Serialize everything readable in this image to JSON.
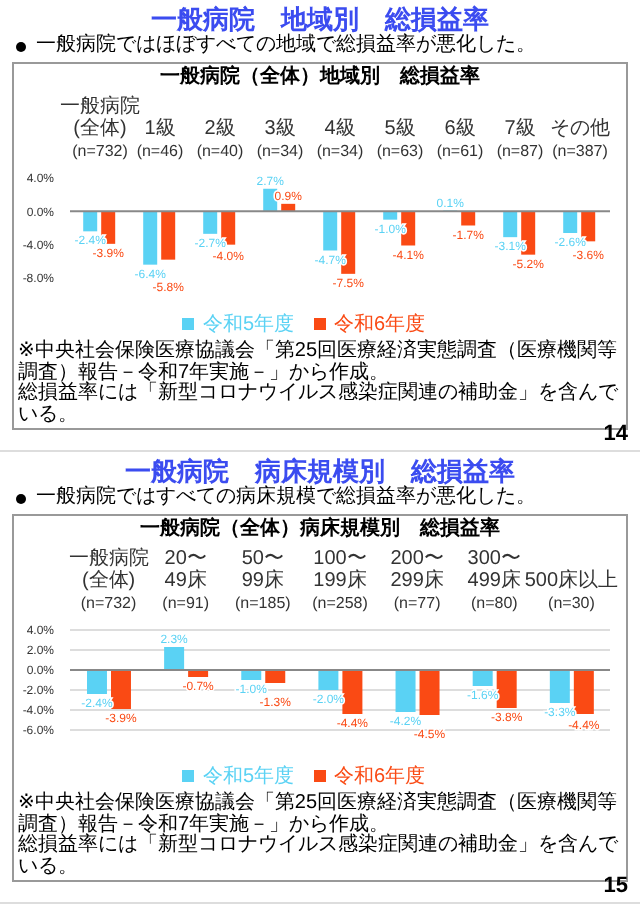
{
  "chart_data": [
    {
      "type": "bar",
      "title": "一般病院　地域別　総損益率",
      "subtitle": "一般病院ではほぼすべての地域で総損益率が悪化した。",
      "annotations": [
        "一般病院（全体）地域別　総損益率",
        "※中央社会保険医療協議会「第25回医療経済実態調査（医療機関等調査）報告－令和7年実施－」から作成。",
        "総損益率には「新型コロナウイルス感染症関連の補助金」を含んでいる。",
        "14"
      ],
      "categories": [
        "一般病院\n(全体)\n(n=732)",
        "1級\n(n=46)",
        "2級\n(n=40)",
        "3級\n(n=34)",
        "4級\n(n=34)",
        "5級\n(n=63)",
        "6級\n(n=61)",
        "7級\n(n=87)",
        "その他\n(n=387)"
      ],
      "series": [
        {
          "name": "令和5年度",
          "color": "#5ad2f4",
          "values": [
            -2.4,
            -6.4,
            -2.7,
            2.7,
            -4.7,
            -1.0,
            0.1,
            -3.1,
            -2.6
          ],
          "value_labels": [
            "-2.4%",
            "-6.4%",
            "-2.7%",
            "2.7%",
            "-4.7%",
            "-1.0%",
            "0.1%",
            "-3.1%",
            "-2.6%"
          ]
        },
        {
          "name": "令和6年度",
          "color": "#fa4a14",
          "values": [
            -3.9,
            -5.8,
            -4.0,
            0.9,
            -7.5,
            -4.1,
            -1.7,
            -5.2,
            -3.6
          ],
          "value_labels": [
            "-3.9%",
            "-5.8%",
            "-4.0%",
            "0.9%",
            "-7.5%",
            "-4.1%",
            "-1.7%",
            "-5.2%",
            "-3.6%"
          ]
        }
      ],
      "ylim": [
        -8,
        4
      ],
      "yticks": [
        {
          "value": 4,
          "label": "4.0%"
        },
        {
          "value": 0,
          "label": "0.0%"
        },
        {
          "value": -4,
          "label": "-4.0%"
        },
        {
          "value": -8,
          "label": "-8.0%"
        }
      ],
      "legend": "bottom"
    },
    {
      "type": "bar",
      "title": "一般病院　病床規模別　総損益率",
      "subtitle": "一般病院ではすべての病床規模で総損益率が悪化した。",
      "annotations": [
        "一般病院（全体）病床規模別　総損益率",
        "※中央社会保険医療協議会「第25回医療経済実態調査（医療機関等調査）報告－令和7年実施－」から作成。",
        "総損益率には「新型コロナウイルス感染症関連の補助金」を含んでいる。",
        "15"
      ],
      "categories": [
        "一般病院\n(全体)\n(n=732)",
        "20〜\n49床\n(n=91)",
        "50〜\n99床\n(n=185)",
        "100〜\n199床\n(n=258)",
        "200〜\n299床\n(n=77)",
        "300〜\n499床\n(n=80)",
        "500床以上\n(n=30)"
      ],
      "series": [
        {
          "name": "令和5年度",
          "color": "#5ad2f4",
          "values": [
            -2.4,
            2.3,
            -1.0,
            -2.0,
            -4.2,
            -1.6,
            -3.3
          ],
          "value_labels": [
            "-2.4%",
            "2.3%",
            "-1.0%",
            "-2.0%",
            "-4.2%",
            "-1.6%",
            "-3.3%"
          ]
        },
        {
          "name": "令和6年度",
          "color": "#fa4a14",
          "values": [
            -3.9,
            -0.7,
            -1.3,
            -4.4,
            -4.5,
            -3.8,
            -4.4
          ],
          "value_labels": [
            "-3.9%",
            "-0.7%",
            "-1.3%",
            "-4.4%",
            "-4.5%",
            "-3.8%",
            "-4.4%"
          ]
        }
      ],
      "ylim": [
        -6,
        4
      ],
      "yticks": [
        {
          "value": 4,
          "label": "4.0%"
        },
        {
          "value": 2,
          "label": "2.0%"
        },
        {
          "value": 0,
          "label": "0.0%"
        },
        {
          "value": -2,
          "label": "-2.0%"
        },
        {
          "value": -4,
          "label": "-4.0%"
        },
        {
          "value": -6,
          "label": "-6.0%"
        }
      ],
      "grid": "y",
      "legend": "bottom"
    }
  ]
}
